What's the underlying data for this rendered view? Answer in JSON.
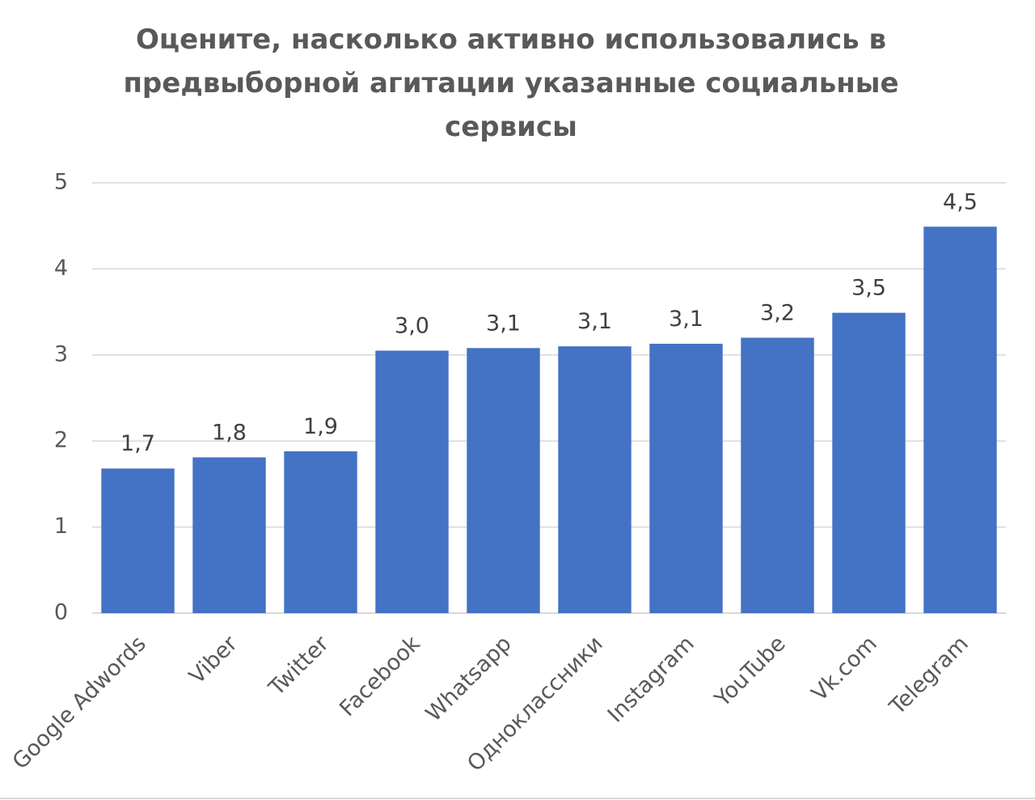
{
  "chart_data": {
    "type": "bar",
    "title": [
      "Оцените, насколько активно использовались в",
      "предвыборной агитации указанные социальные",
      "сервисы"
    ],
    "categories": [
      "Google Adwords",
      "Viber",
      "Twitter",
      "Facebook",
      "Whatsapp",
      "Одноклассники",
      "Instagram",
      "YouTube",
      "Vk.com",
      "Telegram"
    ],
    "values": [
      1.68,
      1.81,
      1.88,
      3.05,
      3.08,
      3.1,
      3.13,
      3.2,
      3.49,
      4.49
    ],
    "data_labels": [
      "1,7",
      "1,8",
      "1,9",
      "3,0",
      "3,1",
      "3,1",
      "3,1",
      "3,2",
      "3,5",
      "4,5"
    ],
    "xlabel": "",
    "ylabel": "",
    "ylim": [
      0,
      5
    ],
    "yticks": [
      0,
      1,
      2,
      3,
      4,
      5
    ],
    "ytick_labels": [
      "0",
      "1",
      "2",
      "3",
      "4",
      "5"
    ],
    "grid": true,
    "legend": "none",
    "colors": {
      "bar": "#4472c4",
      "grid": "#d9d9d9",
      "axis": "#d9d9d9",
      "text": "#595959",
      "data_label": "#404040"
    }
  }
}
